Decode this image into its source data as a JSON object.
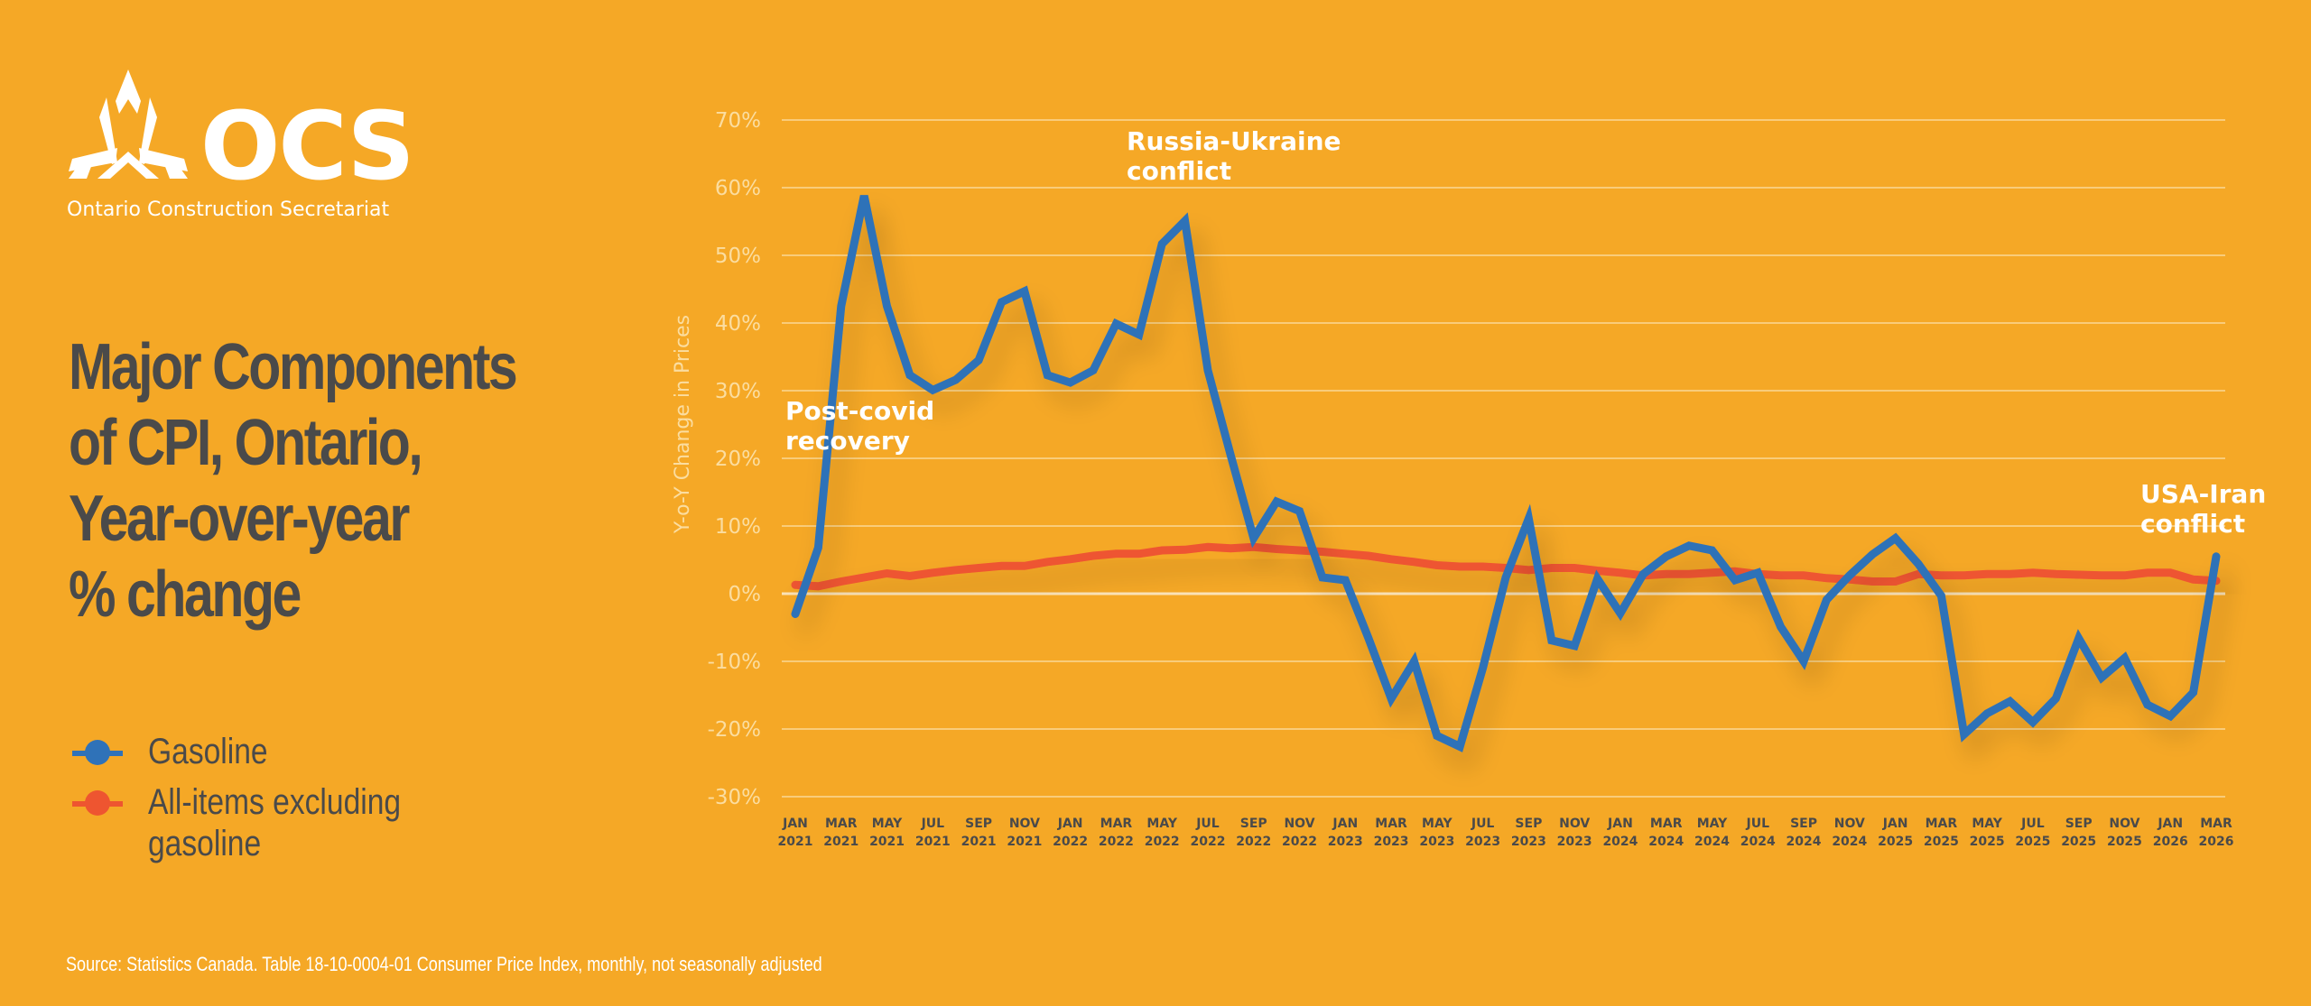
{
  "branding": {
    "logo_icon": "ocs-triangle-logo-icon",
    "logo_text": "OCS",
    "organization": "Ontario Construction Secretariat"
  },
  "title_lines": [
    "Major Components",
    "of CPI, Ontario,",
    "Year-over-year",
    "% change"
  ],
  "legend": [
    {
      "label_lines": [
        "Gasoline"
      ],
      "color": "#2F72B8"
    },
    {
      "label_lines": [
        "All-items excluding",
        "gasoline"
      ],
      "color": "#EE5530"
    }
  ],
  "source": "Source: Statistics Canada. Table 18-10-0004-01  Consumer Price Index, monthly, not seasonally adjusted",
  "colors": {
    "background": "#F5A826",
    "gasoline": "#2F72B8",
    "all_items_ex_gasoline": "#EE5530",
    "title_text": "#4A4A4A",
    "axis_text": "#FBDDA0"
  },
  "chart_data": {
    "type": "line",
    "title": "Major Components of CPI, Ontario, Year-over-year % change",
    "xlabel": "",
    "ylabel": "Y-o-Y Change in Prices",
    "ylim": [
      -30,
      70
    ],
    "yticks": [
      70,
      60,
      50,
      40,
      30,
      20,
      10,
      0,
      -10,
      -20,
      -30
    ],
    "ytick_labels": [
      "70%",
      "60%",
      "50%",
      "40%",
      "30%",
      "20%",
      "10%",
      "0%",
      "-10%",
      "-20%",
      "-30%"
    ],
    "grid": true,
    "legend_position": "left",
    "x": [
      "2021-01",
      "2021-02",
      "2021-03",
      "2021-04",
      "2021-05",
      "2021-06",
      "2021-07",
      "2021-08",
      "2021-09",
      "2021-10",
      "2021-11",
      "2021-12",
      "2022-01",
      "2022-02",
      "2022-03",
      "2022-04",
      "2022-05",
      "2022-06",
      "2022-07",
      "2022-08",
      "2022-09",
      "2022-10",
      "2022-11",
      "2022-12",
      "2023-01",
      "2023-02",
      "2023-03",
      "2023-04",
      "2023-05",
      "2023-06",
      "2023-07",
      "2023-08",
      "2023-09",
      "2023-10",
      "2023-11",
      "2023-12",
      "2024-01",
      "2024-02",
      "2024-03",
      "2024-04",
      "2024-05",
      "2024-06",
      "2024-07",
      "2024-08",
      "2024-09",
      "2024-10",
      "2024-11",
      "2024-12",
      "2025-01",
      "2025-02",
      "2025-03",
      "2025-04",
      "2025-05",
      "2025-06",
      "2025-07",
      "2025-08",
      "2025-09",
      "2025-10",
      "2025-11",
      "2025-12",
      "2026-01",
      "2026-02",
      "2026-03"
    ],
    "x_tick_labels": [
      [
        "JAN",
        "2021"
      ],
      [
        "MAR",
        "2021"
      ],
      [
        "MAY",
        "2021"
      ],
      [
        "JUL",
        "2021"
      ],
      [
        "SEP",
        "2021"
      ],
      [
        "NOV",
        "2021"
      ],
      [
        "JAN",
        "2022"
      ],
      [
        "MAR",
        "2022"
      ],
      [
        "MAY",
        "2022"
      ],
      [
        "JUL",
        "2022"
      ],
      [
        "SEP",
        "2022"
      ],
      [
        "NOV",
        "2022"
      ],
      [
        "JAN",
        "2023"
      ],
      [
        "MAR",
        "2023"
      ],
      [
        "MAY",
        "2023"
      ],
      [
        "JUL",
        "2023"
      ],
      [
        "SEP",
        "2023"
      ],
      [
        "NOV",
        "2023"
      ],
      [
        "JAN",
        "2024"
      ],
      [
        "MAR",
        "2024"
      ],
      [
        "MAY",
        "2024"
      ],
      [
        "JUL",
        "2024"
      ],
      [
        "SEP",
        "2024"
      ],
      [
        "NOV",
        "2024"
      ],
      [
        "JAN",
        "2025"
      ],
      [
        "MAR",
        "2025"
      ],
      [
        "MAY",
        "2025"
      ],
      [
        "JUL",
        "2025"
      ],
      [
        "SEP",
        "2025"
      ],
      [
        "NOV",
        "2025"
      ],
      [
        "JAN",
        "2026"
      ],
      [
        "MAR",
        "2026"
      ]
    ],
    "x_tick_every": 2,
    "series": [
      {
        "name": "Gasoline",
        "color": "#2F72B8",
        "values": [
          -3.0,
          6.8,
          42.5,
          58.8,
          42.5,
          32.3,
          30.1,
          31.6,
          34.5,
          43.1,
          44.7,
          32.3,
          31.2,
          33.0,
          39.9,
          38.3,
          51.7,
          55.1,
          33.0,
          20.4,
          8.2,
          13.6,
          12.2,
          2.4,
          2.0,
          -6.5,
          -15.5,
          -10.0,
          -21.0,
          -22.6,
          -11.0,
          2.4,
          11.1,
          -6.9,
          -7.7,
          2.2,
          -2.9,
          2.9,
          5.5,
          7.1,
          6.4,
          2.0,
          3.1,
          -4.9,
          -10.0,
          -0.9,
          2.7,
          5.8,
          8.2,
          4.4,
          -0.3,
          -20.8,
          -17.7,
          -15.9,
          -19.0,
          -15.5,
          -6.6,
          -12.4,
          -9.5,
          -16.4,
          -18.1,
          -14.6,
          5.5
        ]
      },
      {
        "name": "All-items excluding gasoline",
        "color": "#EE5530",
        "values": [
          1.3,
          1.1,
          1.8,
          2.4,
          3.0,
          2.6,
          3.1,
          3.5,
          3.8,
          4.1,
          4.1,
          4.7,
          5.1,
          5.6,
          5.9,
          5.9,
          6.4,
          6.5,
          6.9,
          6.7,
          6.9,
          6.6,
          6.4,
          6.2,
          5.9,
          5.6,
          5.1,
          4.7,
          4.2,
          4.0,
          4.0,
          3.8,
          3.5,
          3.8,
          3.8,
          3.4,
          3.1,
          2.7,
          2.9,
          2.9,
          3.1,
          3.3,
          2.9,
          2.7,
          2.7,
          2.3,
          2.1,
          1.8,
          1.8,
          2.9,
          2.7,
          2.7,
          2.9,
          2.9,
          3.1,
          2.9,
          2.8,
          2.7,
          2.7,
          3.1,
          3.1,
          2.1,
          1.9
        ]
      }
    ],
    "annotations": [
      {
        "text_lines": [
          "Post-covid",
          "recovery"
        ],
        "near": "2021-01",
        "value_anchor": 28
      },
      {
        "text_lines": [
          "Russia-Ukraine",
          "conflict"
        ],
        "near": "2022-01",
        "value_anchor": 67
      },
      {
        "text_lines": [
          "USA-Iran",
          "conflict"
        ],
        "near": "2026-01",
        "value_anchor": 14
      }
    ]
  }
}
